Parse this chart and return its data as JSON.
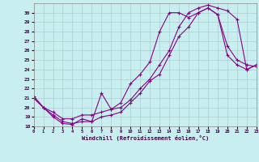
{
  "xlabel": "Windchill (Refroidissement éolien,°C)",
  "bg_color": "#c8eef0",
  "grid_color": "#aacccc",
  "line_color": "#880088",
  "xlim": [
    0,
    23
  ],
  "ylim": [
    18,
    31
  ],
  "xticks": [
    0,
    1,
    2,
    3,
    4,
    5,
    6,
    7,
    8,
    9,
    10,
    11,
    12,
    13,
    14,
    15,
    16,
    17,
    18,
    19,
    20,
    21,
    22,
    23
  ],
  "yticks": [
    18,
    19,
    20,
    21,
    22,
    23,
    24,
    25,
    26,
    27,
    28,
    29,
    30
  ],
  "line1_x": [
    0,
    1,
    2,
    3,
    4,
    5,
    6,
    7,
    8,
    9,
    10,
    11,
    12,
    13,
    14,
    15,
    16,
    17,
    18,
    19,
    20,
    21,
    22,
    23
  ],
  "line1_y": [
    21,
    20,
    19,
    18.3,
    18.2,
    18.8,
    18.5,
    21.5,
    19.8,
    20.5,
    22.5,
    23.5,
    24.8,
    28,
    30,
    30,
    29.5,
    30,
    30.5,
    29.8,
    25.5,
    24.5,
    24,
    24.5
  ],
  "line2_x": [
    0,
    1,
    2,
    3,
    4,
    5,
    6,
    7,
    8,
    9,
    10,
    11,
    12,
    13,
    14,
    15,
    16,
    17,
    18,
    19,
    20,
    21,
    22,
    23
  ],
  "line2_y": [
    21.2,
    20,
    19.2,
    18.5,
    18.3,
    18.5,
    18.5,
    19,
    19.2,
    19.5,
    20.5,
    21.5,
    22.8,
    23.5,
    25.5,
    27.5,
    28.5,
    30,
    30.5,
    29.8,
    26.5,
    25,
    24.5,
    24.3
  ],
  "line3_x": [
    0,
    1,
    2,
    3,
    4,
    5,
    6,
    7,
    8,
    9,
    10,
    11,
    12,
    13,
    14,
    15,
    16,
    17,
    18,
    19,
    20,
    21,
    22,
    23
  ],
  "line3_y": [
    21,
    20,
    19.5,
    18.8,
    18.8,
    19.2,
    19.2,
    19.5,
    19.8,
    20,
    20.8,
    22,
    23,
    24.5,
    26,
    28.5,
    30,
    30.5,
    30.8,
    30.5,
    30.2,
    29.3,
    24,
    24.5
  ]
}
